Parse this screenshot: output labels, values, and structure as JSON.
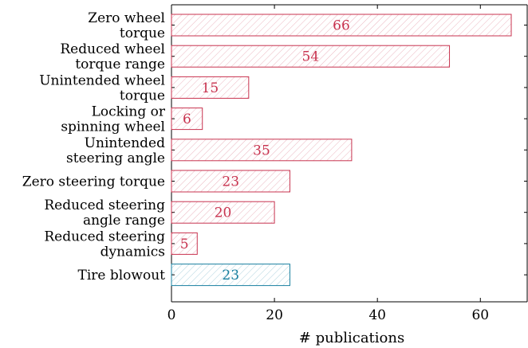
{
  "chart_data": {
    "type": "bar",
    "orientation": "horizontal",
    "categories": [
      [
        "Zero wheel",
        "torque"
      ],
      [
        "Reduced wheel",
        "torque range"
      ],
      [
        "Unintended wheel",
        "torque"
      ],
      [
        "Locking or",
        "spinning wheel"
      ],
      [
        "Unintended",
        "steering angle"
      ],
      [
        "Zero steering torque"
      ],
      [
        "Reduced steering",
        "angle range"
      ],
      [
        "Reduced steering",
        "dynamics"
      ],
      [
        "Tire blowout"
      ]
    ],
    "values": [
      66,
      54,
      15,
      6,
      35,
      23,
      20,
      5,
      23
    ],
    "colors": [
      "#c8334f",
      "#c8334f",
      "#c8334f",
      "#c8334f",
      "#c8334f",
      "#c8334f",
      "#c8334f",
      "#c8334f",
      "#1a80a0"
    ],
    "xlabel": "# publications",
    "ylabel": "",
    "xlim": [
      0,
      70
    ],
    "xticks": [
      0,
      20,
      40,
      60
    ],
    "grid": false,
    "bar_fill": "diagonal-hatch"
  }
}
